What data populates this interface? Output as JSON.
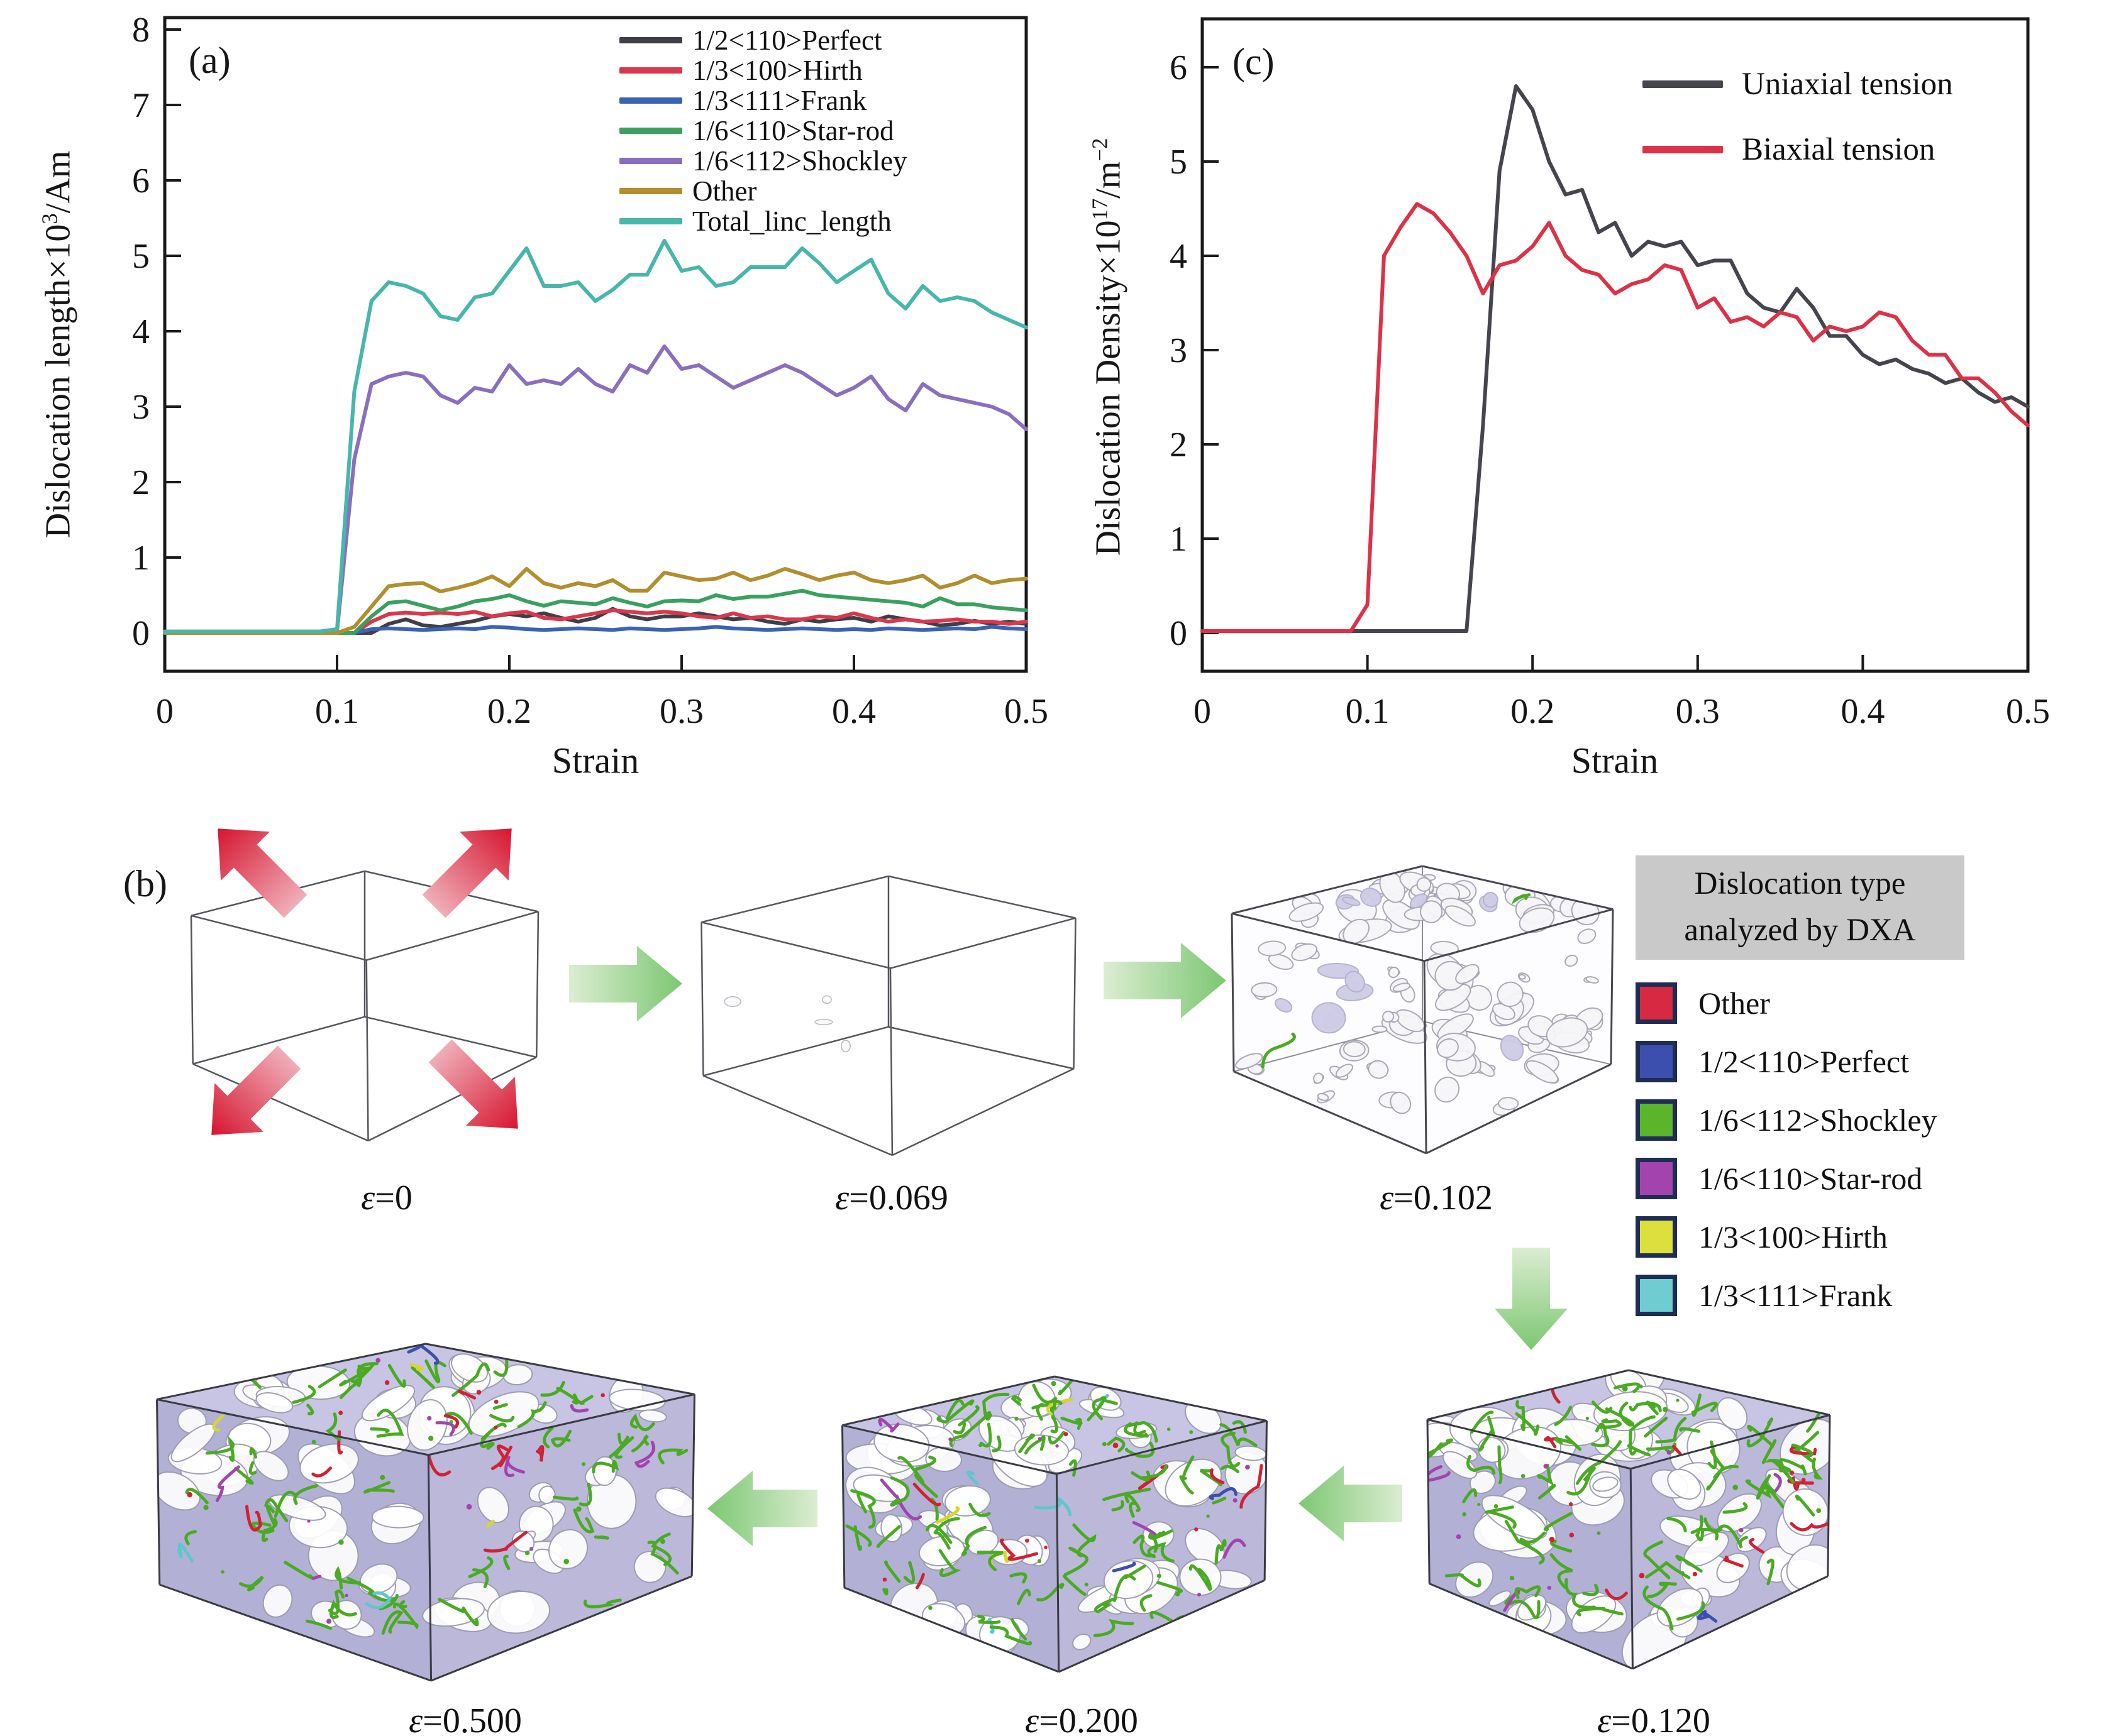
{
  "panel_a": {
    "letter": "(a)",
    "ylabel": {
      "main": "Dislocation length×10",
      "sup": "3",
      "unit": "/Am"
    },
    "xlabel": "Strain"
  },
  "panel_c": {
    "letter": "(c)",
    "ylabel": {
      "main": "Dislocation Density×10",
      "sup": "17",
      "mid": "/m",
      "sup2": "−2"
    },
    "xlabel": "Strain"
  },
  "panel_b": {
    "letter": "(b)",
    "dxa_legend": {
      "title_line1": "Dislocation type",
      "title_line2": "analyzed by DXA",
      "title_bg": "#c9c9c9",
      "swatch_border": "#1f2c55",
      "items": [
        {
          "label": "Other",
          "color": "#d7293f"
        },
        {
          "label": "1/2<110>Perfect",
          "color": "#3d4fae"
        },
        {
          "label": "1/6<112>Shockley",
          "color": "#5ab52b"
        },
        {
          "label": "1/6<110>Star-rod",
          "color": "#a344ae"
        },
        {
          "label": "1/3<100>Hirth",
          "color": "#dde03c"
        },
        {
          "label": "1/3<111>Frank",
          "color": "#6fcdd2"
        }
      ]
    },
    "snapshots": [
      {
        "label": "ε=0",
        "kind": "wireframe-with-tension-arrows"
      },
      {
        "label": "ε=0.069",
        "kind": "wireframe"
      },
      {
        "label": "ε=0.102",
        "kind": "voids"
      },
      {
        "label": "ε=0.120",
        "kind": "dislocations"
      },
      {
        "label": "ε=0.200",
        "kind": "dislocations"
      },
      {
        "label": "ε=0.500",
        "kind": "dislocations"
      }
    ],
    "arrow_colors": {
      "tension_red": "#d6152e",
      "flow_green": "#7cc772"
    }
  },
  "chart_data": [
    {
      "type": "line",
      "panel": "a",
      "title": "",
      "xlabel": "Strain",
      "ylabel": "Dislocation length×10³/Am",
      "xlim": [
        0,
        0.5
      ],
      "ylim": [
        0,
        8
      ],
      "x_ticks": [
        0,
        0.1,
        0.2,
        0.3,
        0.4,
        0.5
      ],
      "y_ticks": [
        0,
        1,
        2,
        3,
        4,
        5,
        6,
        7,
        8
      ],
      "grid": false,
      "legend_position": "top-right",
      "x": [
        0,
        0.01,
        0.02,
        0.03,
        0.04,
        0.05,
        0.06,
        0.07,
        0.08,
        0.09,
        0.1,
        0.11,
        0.12,
        0.13,
        0.14,
        0.15,
        0.16,
        0.17,
        0.18,
        0.19,
        0.2,
        0.21,
        0.22,
        0.23,
        0.24,
        0.25,
        0.26,
        0.27,
        0.28,
        0.29,
        0.3,
        0.31,
        0.32,
        0.33,
        0.34,
        0.35,
        0.36,
        0.37,
        0.38,
        0.39,
        0.4,
        0.41,
        0.42,
        0.43,
        0.44,
        0.45,
        0.46,
        0.47,
        0.48,
        0.49,
        0.5
      ],
      "series": [
        {
          "name": "1/2<110>Perfect",
          "color": "#3f3f48",
          "values": [
            0,
            0,
            0,
            0,
            0,
            0,
            0,
            0,
            0,
            0,
            0,
            0,
            0,
            0.12,
            0.18,
            0.1,
            0.08,
            0.12,
            0.16,
            0.22,
            0.25,
            0.22,
            0.26,
            0.2,
            0.15,
            0.2,
            0.32,
            0.22,
            0.18,
            0.22,
            0.22,
            0.26,
            0.22,
            0.18,
            0.2,
            0.15,
            0.12,
            0.18,
            0.15,
            0.18,
            0.2,
            0.15,
            0.22,
            0.18,
            0.15,
            0.1,
            0.12,
            0.16,
            0.12,
            0.15,
            0.12
          ]
        },
        {
          "name": "1/3<100>Hirth",
          "color": "#d9374c",
          "values": [
            0,
            0,
            0,
            0,
            0,
            0,
            0,
            0,
            0,
            0,
            0,
            0,
            0.15,
            0.25,
            0.27,
            0.25,
            0.27,
            0.25,
            0.28,
            0.22,
            0.26,
            0.28,
            0.2,
            0.18,
            0.22,
            0.26,
            0.3,
            0.28,
            0.26,
            0.28,
            0.26,
            0.22,
            0.2,
            0.26,
            0.2,
            0.22,
            0.18,
            0.18,
            0.22,
            0.2,
            0.26,
            0.2,
            0.15,
            0.18,
            0.15,
            0.16,
            0.18,
            0.15,
            0.15,
            0.12,
            0.15
          ]
        },
        {
          "name": "1/3<111>Frank",
          "color": "#3b63b5",
          "values": [
            0,
            0,
            0,
            0,
            0,
            0,
            0,
            0,
            0,
            0,
            0,
            0,
            0.05,
            0.06,
            0.05,
            0.04,
            0.05,
            0.06,
            0.05,
            0.08,
            0.07,
            0.05,
            0.04,
            0.05,
            0.06,
            0.05,
            0.04,
            0.06,
            0.05,
            0.04,
            0.05,
            0.06,
            0.08,
            0.06,
            0.05,
            0.04,
            0.05,
            0.06,
            0.05,
            0.04,
            0.05,
            0.04,
            0.06,
            0.05,
            0.04,
            0.05,
            0.06,
            0.05,
            0.08,
            0.06,
            0.05
          ]
        },
        {
          "name": "1/6<110>Star-rod",
          "color": "#3aa05f",
          "values": [
            0,
            0,
            0,
            0,
            0,
            0,
            0,
            0,
            0,
            0,
            0,
            0,
            0.22,
            0.4,
            0.42,
            0.36,
            0.3,
            0.35,
            0.42,
            0.45,
            0.5,
            0.42,
            0.36,
            0.42,
            0.4,
            0.38,
            0.46,
            0.4,
            0.35,
            0.42,
            0.43,
            0.42,
            0.5,
            0.45,
            0.48,
            0.48,
            0.52,
            0.56,
            0.5,
            0.48,
            0.46,
            0.44,
            0.42,
            0.4,
            0.35,
            0.46,
            0.38,
            0.38,
            0.34,
            0.32,
            0.3
          ]
        },
        {
          "name": "1/6<112>Shockley",
          "color": "#8a6fbe",
          "values": [
            0,
            0,
            0,
            0,
            0,
            0,
            0,
            0,
            0,
            0,
            0.02,
            2.3,
            3.3,
            3.4,
            3.45,
            3.4,
            3.15,
            3.05,
            3.25,
            3.2,
            3.55,
            3.3,
            3.35,
            3.3,
            3.5,
            3.3,
            3.2,
            3.55,
            3.45,
            3.8,
            3.5,
            3.55,
            3.4,
            3.25,
            3.35,
            3.45,
            3.55,
            3.45,
            3.3,
            3.15,
            3.25,
            3.4,
            3.1,
            2.95,
            3.3,
            3.15,
            3.1,
            3.05,
            3.0,
            2.9,
            2.7
          ]
        },
        {
          "name": "Other",
          "color": "#b28e2e",
          "values": [
            0,
            0,
            0,
            0,
            0,
            0,
            0,
            0,
            0,
            0,
            0,
            0.08,
            0.35,
            0.62,
            0.65,
            0.66,
            0.55,
            0.6,
            0.66,
            0.75,
            0.62,
            0.85,
            0.66,
            0.6,
            0.66,
            0.62,
            0.7,
            0.56,
            0.56,
            0.8,
            0.75,
            0.7,
            0.72,
            0.8,
            0.7,
            0.76,
            0.85,
            0.78,
            0.7,
            0.76,
            0.8,
            0.7,
            0.66,
            0.7,
            0.76,
            0.6,
            0.66,
            0.76,
            0.66,
            0.7,
            0.72
          ]
        },
        {
          "name": "Total_linc_length",
          "color": "#47b6ab",
          "values": [
            0.02,
            0.02,
            0.02,
            0.02,
            0.02,
            0.02,
            0.02,
            0.02,
            0.02,
            0.02,
            0.05,
            3.2,
            4.4,
            4.65,
            4.6,
            4.5,
            4.2,
            4.15,
            4.45,
            4.5,
            4.8,
            5.1,
            4.6,
            4.6,
            4.65,
            4.4,
            4.55,
            4.75,
            4.75,
            5.2,
            4.8,
            4.85,
            4.6,
            4.65,
            4.85,
            4.85,
            4.85,
            5.1,
            4.9,
            4.65,
            4.8,
            4.95,
            4.5,
            4.3,
            4.6,
            4.4,
            4.45,
            4.4,
            4.25,
            4.15,
            4.05
          ]
        }
      ]
    },
    {
      "type": "line",
      "panel": "c",
      "title": "",
      "xlabel": "Strain",
      "ylabel": "Dislocation Density×10¹⁷/m⁻²",
      "xlim": [
        0,
        0.5
      ],
      "ylim": [
        0,
        6
      ],
      "x_ticks": [
        0,
        0.1,
        0.2,
        0.3,
        0.4,
        0.5
      ],
      "y_ticks": [
        0,
        1,
        2,
        3,
        4,
        5,
        6
      ],
      "grid": false,
      "legend_position": "top-right",
      "x": [
        0,
        0.01,
        0.02,
        0.03,
        0.04,
        0.05,
        0.06,
        0.07,
        0.08,
        0.09,
        0.1,
        0.11,
        0.12,
        0.13,
        0.14,
        0.15,
        0.16,
        0.17,
        0.18,
        0.19,
        0.2,
        0.21,
        0.22,
        0.23,
        0.24,
        0.25,
        0.26,
        0.27,
        0.28,
        0.29,
        0.3,
        0.31,
        0.32,
        0.33,
        0.34,
        0.35,
        0.36,
        0.37,
        0.38,
        0.39,
        0.4,
        0.41,
        0.42,
        0.43,
        0.44,
        0.45,
        0.46,
        0.47,
        0.48,
        0.49,
        0.5
      ],
      "series": [
        {
          "name": "Uniaxial tension",
          "color": "#45454d",
          "values": [
            0.02,
            0.02,
            0.02,
            0.02,
            0.02,
            0.02,
            0.02,
            0.02,
            0.02,
            0.02,
            0.02,
            0.02,
            0.02,
            0.02,
            0.02,
            0.02,
            0.02,
            2.2,
            4.9,
            5.8,
            5.55,
            5.0,
            4.65,
            4.7,
            4.25,
            4.35,
            4.0,
            4.15,
            4.1,
            4.15,
            3.9,
            3.95,
            3.95,
            3.6,
            3.45,
            3.4,
            3.65,
            3.45,
            3.15,
            3.15,
            2.95,
            2.85,
            2.9,
            2.8,
            2.75,
            2.65,
            2.7,
            2.55,
            2.45,
            2.5,
            2.4
          ]
        },
        {
          "name": "Biaxial tension",
          "color": "#dc3247",
          "values": [
            0.02,
            0.02,
            0.02,
            0.02,
            0.02,
            0.02,
            0.02,
            0.02,
            0.02,
            0.02,
            0.3,
            4.0,
            4.3,
            4.55,
            4.45,
            4.25,
            4.0,
            3.6,
            3.9,
            3.95,
            4.1,
            4.35,
            4.0,
            3.85,
            3.8,
            3.6,
            3.7,
            3.75,
            3.9,
            3.85,
            3.45,
            3.55,
            3.3,
            3.35,
            3.25,
            3.4,
            3.35,
            3.1,
            3.25,
            3.2,
            3.25,
            3.4,
            3.35,
            3.1,
            2.95,
            2.95,
            2.7,
            2.7,
            2.55,
            2.35,
            2.2
          ]
        }
      ]
    }
  ]
}
